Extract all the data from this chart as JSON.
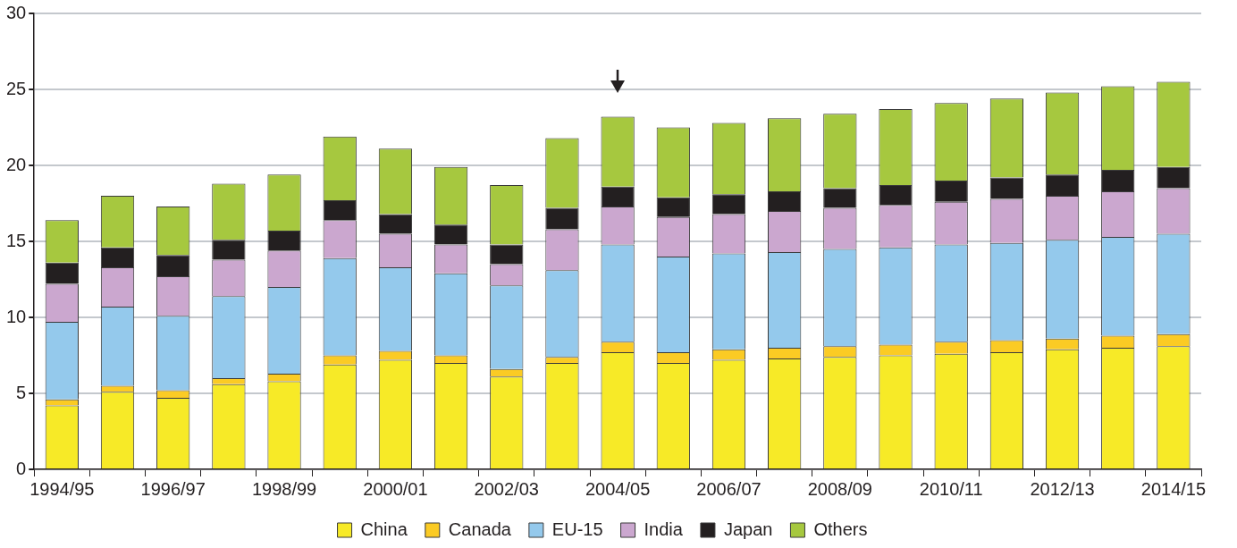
{
  "chart_data": {
    "type": "bar",
    "stacked": true,
    "categories": [
      "1994/95",
      null,
      "1996/97",
      null,
      "1998/99",
      null,
      "2000/01",
      null,
      "2002/03",
      null,
      "2004/05",
      null,
      "2006/07",
      null,
      "2008/09",
      null,
      "2010/11",
      null,
      "2012/13",
      null,
      "2014/15"
    ],
    "series": [
      {
        "name": "China",
        "color": "#f7ea27",
        "values": [
          4.2,
          5.1,
          4.7,
          5.6,
          5.8,
          6.9,
          7.2,
          7.0,
          6.1,
          7.0,
          7.7,
          7.0,
          7.2,
          7.3,
          7.4,
          7.5,
          7.6,
          7.7,
          7.9,
          8.0,
          8.1
        ]
      },
      {
        "name": "Canada",
        "color": "#fbcb24",
        "values": [
          0.4,
          0.4,
          0.5,
          0.4,
          0.5,
          0.6,
          0.6,
          0.5,
          0.5,
          0.4,
          0.7,
          0.7,
          0.7,
          0.7,
          0.7,
          0.7,
          0.8,
          0.8,
          0.7,
          0.8,
          0.8
        ]
      },
      {
        "name": "EU-15",
        "color": "#94c9ec",
        "values": [
          5.1,
          5.2,
          4.9,
          5.4,
          5.7,
          6.4,
          5.5,
          5.4,
          5.5,
          5.7,
          6.4,
          6.3,
          6.3,
          6.3,
          6.4,
          6.4,
          6.4,
          6.4,
          6.5,
          6.5,
          6.6
        ]
      },
      {
        "name": "India",
        "color": "#cba7cf",
        "values": [
          2.5,
          2.6,
          2.6,
          2.4,
          2.4,
          2.5,
          2.2,
          1.9,
          1.4,
          2.7,
          2.5,
          2.6,
          2.6,
          2.7,
          2.7,
          2.8,
          2.8,
          2.9,
          2.9,
          3.0,
          3.0
        ]
      },
      {
        "name": "Japan",
        "color": "#231f20",
        "values": [
          1.4,
          1.3,
          1.4,
          1.3,
          1.3,
          1.3,
          1.3,
          1.3,
          1.3,
          1.4,
          1.3,
          1.3,
          1.3,
          1.3,
          1.3,
          1.3,
          1.4,
          1.4,
          1.4,
          1.4,
          1.4
        ]
      },
      {
        "name": "Others",
        "color": "#a6c83f",
        "values": [
          2.8,
          3.4,
          3.2,
          3.7,
          3.7,
          4.2,
          4.3,
          3.8,
          3.9,
          4.6,
          4.6,
          4.6,
          4.7,
          4.8,
          4.9,
          5.0,
          5.1,
          5.2,
          5.4,
          5.5,
          5.6
        ]
      }
    ],
    "ylim": [
      0,
      30
    ],
    "yticks": [
      0,
      5,
      10,
      15,
      20,
      25,
      30
    ],
    "grid": "y",
    "legend": "bottom"
  }
}
